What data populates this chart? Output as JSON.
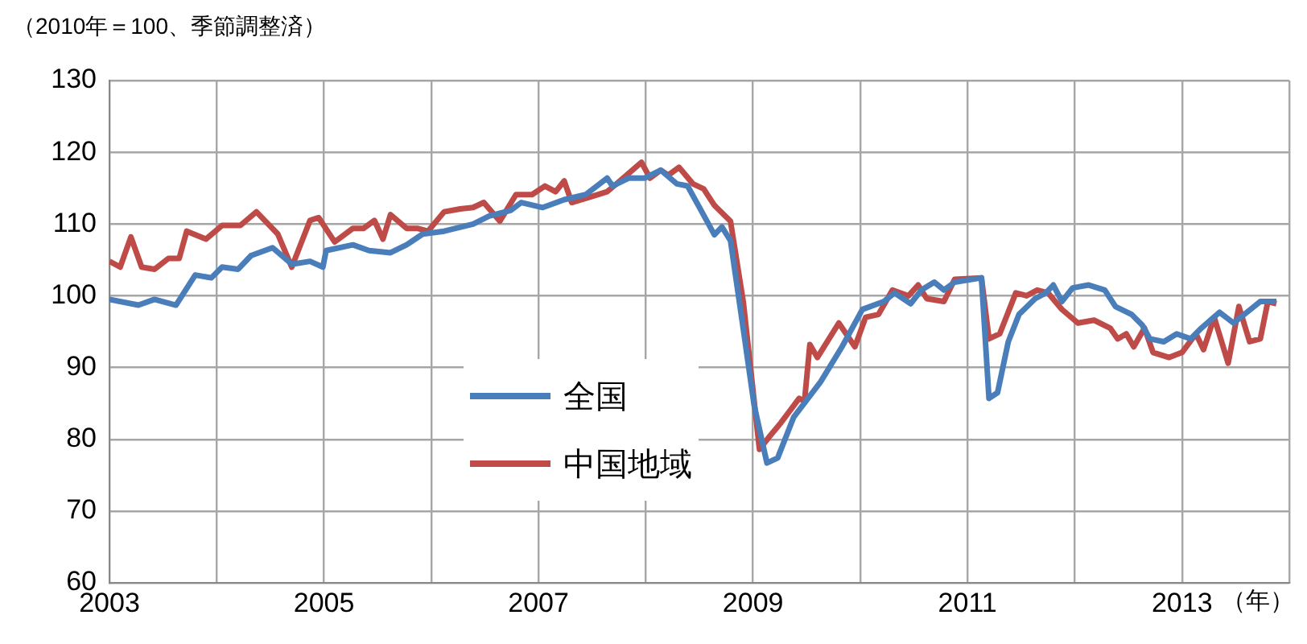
{
  "chart_data": {
    "type": "line",
    "ylabel": "（2010年＝100、季節調整済）",
    "xlabel": "（年）",
    "xlim": [
      2003,
      2014
    ],
    "xticks": [
      2003,
      {
        "value": 2004,
        "label": null
      },
      2005,
      {
        "value": 2006,
        "label": null
      },
      2007,
      {
        "value": 2008,
        "label": null
      },
      2009,
      {
        "value": 2010,
        "label": null
      },
      2011,
      {
        "value": 2012,
        "label": null
      },
      2013,
      {
        "value": 2014,
        "label": null
      }
    ],
    "ylim": [
      60,
      130
    ],
    "yticks": [
      60,
      70,
      80,
      90,
      100,
      110,
      120,
      130
    ],
    "grid": true,
    "legend": "left",
    "marker": "none",
    "line_style": "solid",
    "series": [
      {
        "name": "全国",
        "color": "#4a7ebb",
        "x": [
          2003.0,
          2003.27,
          2003.42,
          2003.62,
          2003.8,
          2003.95,
          2004.05,
          2004.2,
          2004.32,
          2004.52,
          2004.7,
          2004.87,
          2004.99,
          2005.02,
          2005.27,
          2005.42,
          2005.62,
          2005.77,
          2005.92,
          2006.12,
          2006.39,
          2006.54,
          2006.74,
          2006.84,
          2007.04,
          2007.24,
          2007.44,
          2007.64,
          2007.69,
          2007.84,
          2007.99,
          2008.14,
          2008.29,
          2008.39,
          2008.49,
          2008.64,
          2008.71,
          2008.79,
          2008.91,
          2009.01,
          2009.13,
          2009.23,
          2009.38,
          2009.63,
          2009.83,
          2010.02,
          2010.22,
          2010.32,
          2010.47,
          2010.57,
          2010.69,
          2010.78,
          2010.88,
          2011.13,
          2011.2,
          2011.28,
          2011.38,
          2011.48,
          2011.63,
          2011.73,
          2011.8,
          2011.88,
          2011.98,
          2012.13,
          2012.28,
          2012.38,
          2012.53,
          2012.63,
          2012.7,
          2012.83,
          2012.95,
          2013.08,
          2013.18,
          2013.35,
          2013.48,
          2013.58,
          2013.73,
          2013.88
        ],
        "values": [
          99.5,
          98.7,
          99.5,
          98.7,
          102.9,
          102.5,
          104,
          103.7,
          105.6,
          106.7,
          104.4,
          104.8,
          104,
          106.3,
          107.1,
          106.3,
          106,
          107.1,
          108.6,
          109,
          110,
          111.1,
          111.9,
          113,
          112.3,
          113.4,
          114.1,
          116.4,
          115.3,
          116.4,
          116.4,
          117.5,
          115.6,
          115.3,
          112.6,
          108.5,
          109.6,
          107.7,
          95.3,
          84.8,
          76.7,
          77.4,
          83.1,
          88,
          92.9,
          98.1,
          99.2,
          100.4,
          98.9,
          100.8,
          101.9,
          100.8,
          101.9,
          102.5,
          85.7,
          86.5,
          93.6,
          97.4,
          99.6,
          100.4,
          101.5,
          99.2,
          101.1,
          101.5,
          100.8,
          98.5,
          97.4,
          95.9,
          94,
          93.6,
          94.7,
          94,
          95.5,
          97.7,
          96.2,
          97.4,
          99.2,
          99.2
        ]
      },
      {
        "name": "中国地域",
        "color": "#be4b48",
        "x": [
          2003.0,
          2003.1,
          2003.2,
          2003.3,
          2003.42,
          2003.55,
          2003.65,
          2003.72,
          2003.9,
          2004.05,
          2004.22,
          2004.37,
          2004.57,
          2004.7,
          2004.87,
          2004.95,
          2005.1,
          2005.27,
          2005.37,
          2005.47,
          2005.55,
          2005.62,
          2005.77,
          2005.87,
          2005.97,
          2006.12,
          2006.27,
          2006.39,
          2006.49,
          2006.64,
          2006.79,
          2006.94,
          2007.06,
          2007.16,
          2007.24,
          2007.31,
          2007.49,
          2007.64,
          2007.79,
          2007.96,
          2008.04,
          2008.14,
          2008.21,
          2008.31,
          2008.44,
          2008.54,
          2008.64,
          2008.79,
          2008.91,
          2009.06,
          2009.16,
          2009.26,
          2009.43,
          2009.48,
          2009.53,
          2009.6,
          2009.8,
          2009.95,
          2010.05,
          2010.17,
          2010.3,
          2010.45,
          2010.54,
          2010.62,
          2010.78,
          2010.88,
          2011.13,
          2011.2,
          2011.3,
          2011.45,
          2011.55,
          2011.65,
          2011.75,
          2011.88,
          2012.03,
          2012.18,
          2012.33,
          2012.4,
          2012.48,
          2012.55,
          2012.65,
          2012.73,
          2012.88,
          2013.0,
          2013.13,
          2013.2,
          2013.3,
          2013.43,
          2013.53,
          2013.63,
          2013.73,
          2013.8,
          2013.88
        ],
        "values": [
          104.8,
          104,
          108.2,
          104,
          103.7,
          105.2,
          105.2,
          109,
          107.9,
          109.8,
          109.8,
          111.7,
          108.6,
          104,
          110.5,
          110.9,
          107.5,
          109.4,
          109.4,
          110.5,
          107.9,
          111.3,
          109.4,
          109.4,
          109,
          111.7,
          112.1,
          112.3,
          113,
          110.4,
          114.1,
          114.1,
          115.3,
          114.5,
          116,
          113,
          113.8,
          114.5,
          116.4,
          118.6,
          116.4,
          117.5,
          116.8,
          117.9,
          115.6,
          114.9,
          112.6,
          110.4,
          99.1,
          78.6,
          80.5,
          82.3,
          85.7,
          85.3,
          93.2,
          91.4,
          96.2,
          92.9,
          97,
          97.4,
          100.8,
          100,
          101.5,
          99.6,
          99.2,
          102.3,
          102.5,
          94,
          94.7,
          100.4,
          100,
          100.8,
          100.4,
          98.1,
          96.2,
          96.6,
          95.5,
          94,
          94.7,
          92.9,
          95.5,
          92.1,
          91.4,
          92.1,
          94.7,
          92.5,
          97,
          90.6,
          98.5,
          93.6,
          94,
          99.2,
          98.9
        ]
      }
    ]
  }
}
